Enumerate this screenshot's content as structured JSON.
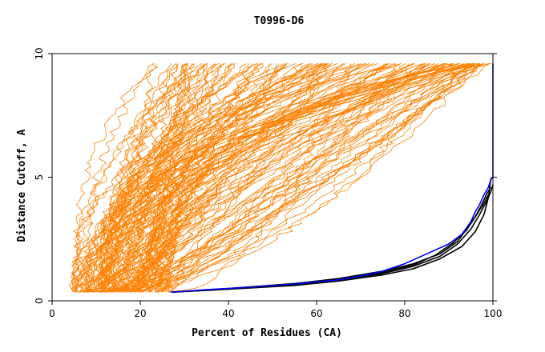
{
  "chart_data": {
    "type": "line",
    "title": "T0996-D6",
    "xlabel": "Percent of Residues (CA)",
    "ylabel": "Distance Cutoff, A",
    "xlim": [
      0,
      100
    ],
    "ylim": [
      0,
      10
    ],
    "xticks": [
      0,
      20,
      40,
      60,
      80,
      100
    ],
    "yticks": [
      0,
      5,
      10
    ],
    "grid": false,
    "background_series": {
      "name": "other models",
      "color": "#ff8000",
      "count": 150,
      "x_start_range": [
        4.5,
        27
      ],
      "x_at_ymax_range": [
        20,
        100
      ]
    },
    "series": [
      {
        "name": "black-1",
        "color": "#000000",
        "x": [
          27,
          35,
          45,
          55,
          65,
          75,
          82,
          88,
          93,
          96,
          98,
          99,
          99.5,
          99.7
        ],
        "y": [
          0.35,
          0.42,
          0.52,
          0.62,
          0.8,
          1.05,
          1.3,
          1.7,
          2.2,
          2.8,
          3.5,
          4.2,
          4.9,
          5.0
        ]
      },
      {
        "name": "black-2",
        "color": "#000000",
        "x": [
          27,
          40,
          55,
          65,
          75,
          82,
          88,
          92,
          95,
          97,
          98.5,
          99.5,
          100
        ],
        "y": [
          0.35,
          0.47,
          0.65,
          0.85,
          1.1,
          1.4,
          1.8,
          2.3,
          2.9,
          3.5,
          4.0,
          4.4,
          4.7
        ]
      },
      {
        "name": "black-3",
        "color": "#000000",
        "x": [
          27,
          40,
          55,
          65,
          75,
          82,
          88,
          92,
          94,
          96,
          97.5,
          98.5,
          99.5
        ],
        "y": [
          0.35,
          0.5,
          0.7,
          0.9,
          1.2,
          1.5,
          1.9,
          2.4,
          2.9,
          3.4,
          3.9,
          4.3,
          4.6
        ]
      },
      {
        "name": "black-4",
        "color": "#000000",
        "x": [
          27,
          40,
          55,
          65,
          75,
          82,
          87,
          91,
          94,
          96,
          98,
          99
        ],
        "y": [
          0.35,
          0.48,
          0.66,
          0.86,
          1.15,
          1.45,
          1.85,
          2.35,
          2.85,
          3.4,
          3.95,
          4.3
        ]
      },
      {
        "name": "blue",
        "color": "#0000ff",
        "x": [
          27,
          35,
          45,
          55,
          65,
          70,
          75,
          80,
          85,
          90,
          93,
          95,
          96,
          97,
          98,
          99,
          99.5,
          100,
          100
        ],
        "y": [
          0.35,
          0.45,
          0.55,
          0.68,
          0.85,
          1.0,
          1.2,
          1.5,
          1.9,
          2.3,
          2.7,
          3.2,
          3.6,
          3.9,
          4.3,
          4.6,
          4.9,
          5.0,
          9.6
        ]
      }
    ]
  }
}
